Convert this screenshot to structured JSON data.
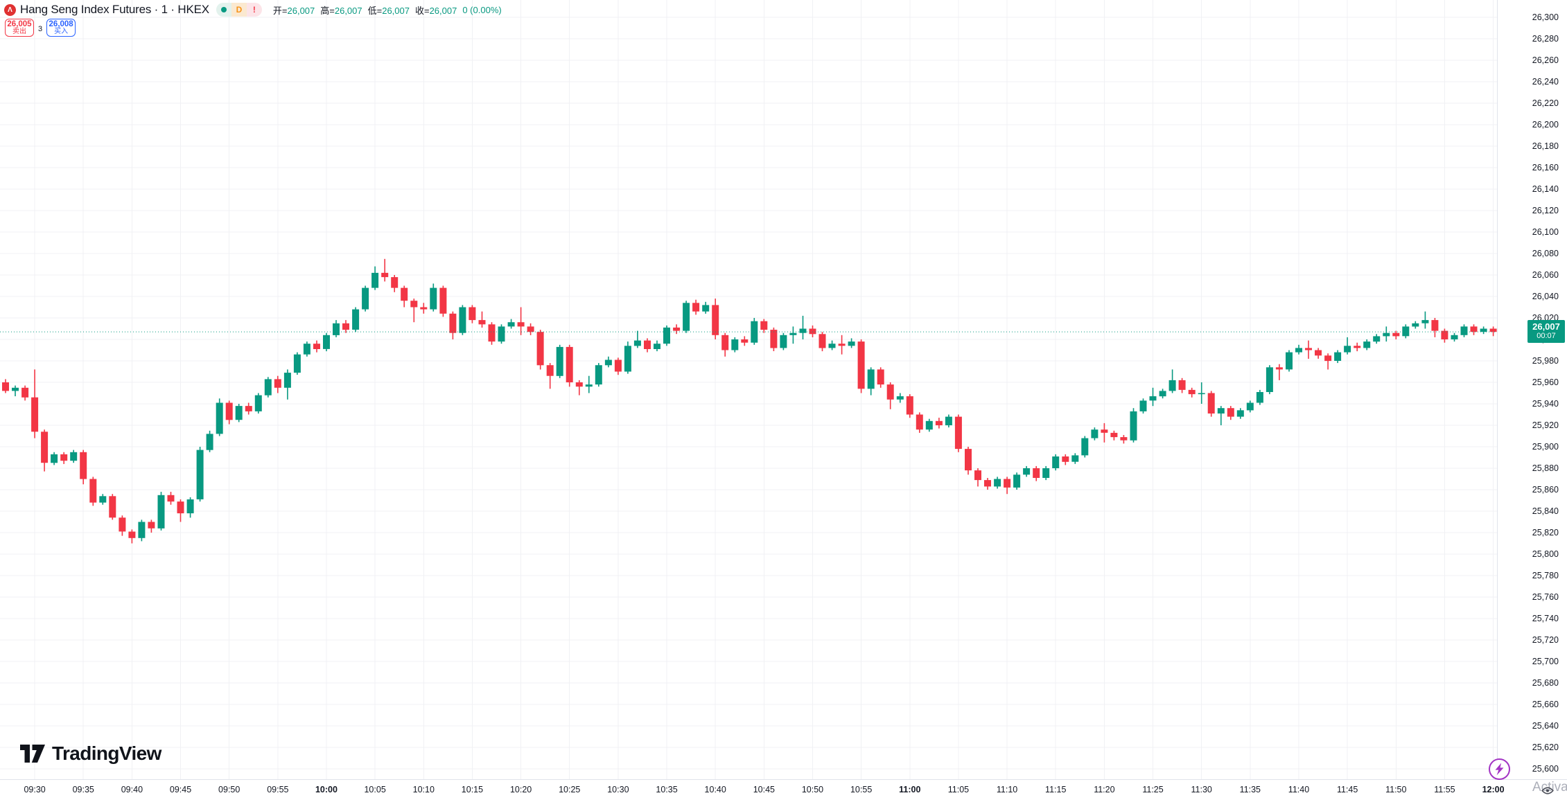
{
  "header": {
    "symbol_logo_glyph": "Λ",
    "symbol_title": "Hang Seng Index Futures · 1 · HKEX",
    "status": {
      "delayed_label": "D",
      "alert_label": "!"
    },
    "ohlc": {
      "open_label": "开=",
      "open_value": "26,007",
      "high_label": "高=",
      "high_value": "26,007",
      "low_label": "低=",
      "low_value": "26,007",
      "close_label": "收=",
      "close_value": "26,007",
      "change": "0 (0.00%)"
    }
  },
  "trade_panel": {
    "sell_price": "26,005",
    "sell_label": "卖出",
    "spread": "3",
    "buy_price": "26,008",
    "buy_label": "买入"
  },
  "price_axis": {
    "ticks": [
      "26,300",
      "26,280",
      "26,260",
      "26,240",
      "26,220",
      "26,200",
      "26,180",
      "26,160",
      "26,140",
      "26,120",
      "26,100",
      "26,080",
      "26,060",
      "26,040",
      "26,020",
      "26,000",
      "25,980",
      "25,960",
      "25,940",
      "25,920",
      "25,900",
      "25,880",
      "25,860",
      "25,840",
      "25,820",
      "25,800",
      "25,780",
      "25,760",
      "25,740",
      "25,720",
      "25,700",
      "25,680",
      "25,660",
      "25,640",
      "25,620",
      "25,600"
    ],
    "last_price_label": "26,007",
    "bar_countdown": "00:07"
  },
  "time_axis": {
    "ticks": [
      "09:30",
      "09:35",
      "09:40",
      "09:45",
      "09:50",
      "09:55",
      "10:00",
      "10:05",
      "10:10",
      "10:15",
      "10:20",
      "10:25",
      "10:30",
      "10:35",
      "10:40",
      "10:45",
      "10:50",
      "10:55",
      "11:00",
      "11:05",
      "11:10",
      "11:15",
      "11:20",
      "11:25",
      "11:30",
      "11:35",
      "11:40",
      "11:45",
      "11:50",
      "11:55",
      "12:00"
    ]
  },
  "watermark": {
    "logo_text": "TradingView"
  },
  "misc": {
    "activate_text": "Activa"
  },
  "colors": {
    "up": "#089981",
    "down": "#F23645",
    "grid": "#F0F1F4",
    "axis_border": "#E0E3EB",
    "last_price_bg": "#089981",
    "sell": "#F23645",
    "buy": "#2962FF",
    "lightning": "#A234C4"
  },
  "chart_data": {
    "type": "candlestick",
    "title": "Hang Seng Index Futures",
    "exchange": "HKEX",
    "interval": "1",
    "session_open": 26007,
    "session_high": 26007,
    "session_low": 26007,
    "session_close": 26007,
    "change": 0,
    "change_pct": 0.0,
    "last_price": 26007,
    "price_axis_range": [
      25600,
      26300
    ],
    "price_tick_step": 20,
    "first_candle_time": "09:27",
    "interval_minutes": 1,
    "x_ticks_every_minutes": 5,
    "grid": true,
    "candles_ohlc": [
      [
        25960,
        25963,
        25950,
        25952
      ],
      [
        25952,
        25957,
        25947,
        25955
      ],
      [
        25955,
        25957,
        25943,
        25946
      ],
      [
        25946,
        25972,
        25908,
        25914
      ],
      [
        25914,
        25916,
        25877,
        25885
      ],
      [
        25885,
        25895,
        25883,
        25893
      ],
      [
        25893,
        25895,
        25884,
        25887
      ],
      [
        25887,
        25897,
        25885,
        25895
      ],
      [
        25895,
        25897,
        25865,
        25870
      ],
      [
        25870,
        25872,
        25845,
        25848
      ],
      [
        25848,
        25856,
        25846,
        25854
      ],
      [
        25854,
        25856,
        25832,
        25834
      ],
      [
        25834,
        25836,
        25817,
        25821
      ],
      [
        25821,
        25823,
        25810,
        25815
      ],
      [
        25815,
        25832,
        25812,
        25830
      ],
      [
        25830,
        25832,
        25820,
        25824
      ],
      [
        25824,
        25858,
        25822,
        25855
      ],
      [
        25855,
        25858,
        25846,
        25849
      ],
      [
        25849,
        25851,
        25830,
        25838
      ],
      [
        25838,
        25853,
        25834,
        25851
      ],
      [
        25851,
        25900,
        25849,
        25897
      ],
      [
        25897,
        25915,
        25895,
        25912
      ],
      [
        25912,
        25945,
        25910,
        25941
      ],
      [
        25941,
        25943,
        25921,
        25925
      ],
      [
        25925,
        25940,
        25923,
        25938
      ],
      [
        25938,
        25941,
        25930,
        25933
      ],
      [
        25933,
        25950,
        25931,
        25948
      ],
      [
        25948,
        25965,
        25946,
        25963
      ],
      [
        25963,
        25966,
        25950,
        25955
      ],
      [
        25955,
        25972,
        25944,
        25969
      ],
      [
        25969,
        25988,
        25967,
        25986
      ],
      [
        25986,
        25998,
        25984,
        25996
      ],
      [
        25996,
        25999,
        25988,
        25991
      ],
      [
        25991,
        26006,
        25989,
        26004
      ],
      [
        26004,
        26018,
        26002,
        26015
      ],
      [
        26015,
        26018,
        26006,
        26009
      ],
      [
        26009,
        26030,
        26007,
        26028
      ],
      [
        26028,
        26050,
        26026,
        26048
      ],
      [
        26048,
        26068,
        26046,
        26062
      ],
      [
        26062,
        26075,
        26054,
        26058
      ],
      [
        26058,
        26060,
        26044,
        26048
      ],
      [
        26048,
        26050,
        26030,
        26036
      ],
      [
        26036,
        26038,
        26016,
        26030
      ],
      [
        26030,
        26034,
        26024,
        26028
      ],
      [
        26028,
        26052,
        26026,
        26048
      ],
      [
        26048,
        26050,
        26021,
        26024
      ],
      [
        26024,
        26026,
        26000,
        26006
      ],
      [
        26006,
        26032,
        26004,
        26030
      ],
      [
        26030,
        26032,
        26015,
        26018
      ],
      [
        26018,
        26026,
        26011,
        26014
      ],
      [
        26014,
        26016,
        25995,
        25998
      ],
      [
        25998,
        26014,
        25996,
        26012
      ],
      [
        26012,
        26019,
        26010,
        26016
      ],
      [
        26016,
        26030,
        26004,
        26012
      ],
      [
        26012,
        26015,
        26004,
        26007
      ],
      [
        26007,
        26009,
        25972,
        25976
      ],
      [
        25976,
        25978,
        25954,
        25966
      ],
      [
        25966,
        25995,
        25964,
        25993
      ],
      [
        25993,
        25995,
        25956,
        25960
      ],
      [
        25960,
        25962,
        25948,
        25956
      ],
      [
        25956,
        25966,
        25950,
        25958
      ],
      [
        25958,
        25978,
        25956,
        25976
      ],
      [
        25976,
        25984,
        25974,
        25981
      ],
      [
        25981,
        25983,
        25967,
        25970
      ],
      [
        25970,
        25998,
        25968,
        25994
      ],
      [
        25994,
        26008,
        25992,
        25999
      ],
      [
        25999,
        26001,
        25988,
        25991
      ],
      [
        25991,
        25999,
        25989,
        25996
      ],
      [
        25996,
        26013,
        25994,
        26011
      ],
      [
        26011,
        26014,
        26005,
        26008
      ],
      [
        26008,
        26036,
        26006,
        26034
      ],
      [
        26034,
        26037,
        26023,
        26026
      ],
      [
        26026,
        26035,
        26024,
        26032
      ],
      [
        26032,
        26038,
        26000,
        26004
      ],
      [
        26004,
        26006,
        25984,
        25990
      ],
      [
        25990,
        26002,
        25988,
        26000
      ],
      [
        26000,
        26003,
        25994,
        25997
      ],
      [
        25997,
        26020,
        25995,
        26017
      ],
      [
        26017,
        26019,
        26006,
        26009
      ],
      [
        26009,
        26011,
        25989,
        25992
      ],
      [
        25992,
        26006,
        25990,
        26004
      ],
      [
        26004,
        26012,
        25996,
        26006
      ],
      [
        26006,
        26022,
        26000,
        26010
      ],
      [
        26010,
        26013,
        26002,
        26005
      ],
      [
        26005,
        26007,
        25989,
        25992
      ],
      [
        25992,
        25999,
        25990,
        25996
      ],
      [
        25996,
        26004,
        25986,
        25994
      ],
      [
        25994,
        26001,
        25992,
        25998
      ],
      [
        25998,
        26000,
        25950,
        25954
      ],
      [
        25954,
        25974,
        25948,
        25972
      ],
      [
        25972,
        25974,
        25955,
        25958
      ],
      [
        25958,
        25960,
        25935,
        25944
      ],
      [
        25944,
        25950,
        25941,
        25947
      ],
      [
        25947,
        25949,
        25927,
        25930
      ],
      [
        25930,
        25932,
        25913,
        25916
      ],
      [
        25916,
        25926,
        25914,
        25924
      ],
      [
        25924,
        25927,
        25917,
        25920
      ],
      [
        25920,
        25930,
        25918,
        25928
      ],
      [
        25928,
        25930,
        25895,
        25898
      ],
      [
        25898,
        25900,
        25874,
        25878
      ],
      [
        25878,
        25880,
        25863,
        25869
      ],
      [
        25869,
        25871,
        25860,
        25863
      ],
      [
        25863,
        25872,
        25861,
        25870
      ],
      [
        25870,
        25872,
        25856,
        25862
      ],
      [
        25862,
        25876,
        25860,
        25874
      ],
      [
        25874,
        25882,
        25872,
        25880
      ],
      [
        25880,
        25882,
        25868,
        25871
      ],
      [
        25871,
        25882,
        25869,
        25880
      ],
      [
        25880,
        25893,
        25878,
        25891
      ],
      [
        25891,
        25893,
        25883,
        25886
      ],
      [
        25886,
        25894,
        25884,
        25892
      ],
      [
        25892,
        25910,
        25890,
        25908
      ],
      [
        25908,
        25918,
        25906,
        25916
      ],
      [
        25916,
        25922,
        25904,
        25913
      ],
      [
        25913,
        25915,
        25906,
        25909
      ],
      [
        25909,
        25911,
        25903,
        25906
      ],
      [
        25906,
        25936,
        25904,
        25933
      ],
      [
        25933,
        25945,
        25931,
        25943
      ],
      [
        25943,
        25955,
        25938,
        25947
      ],
      [
        25947,
        25954,
        25945,
        25952
      ],
      [
        25952,
        25972,
        25950,
        25962
      ],
      [
        25962,
        25964,
        25950,
        25953
      ],
      [
        25953,
        25955,
        25946,
        25949
      ],
      [
        25949,
        25960,
        25940,
        25950
      ],
      [
        25950,
        25952,
        25928,
        25931
      ],
      [
        25931,
        25938,
        25920,
        25936
      ],
      [
        25936,
        25938,
        25925,
        25928
      ],
      [
        25928,
        25936,
        25926,
        25934
      ],
      [
        25934,
        25943,
        25932,
        25941
      ],
      [
        25941,
        25953,
        25939,
        25951
      ],
      [
        25951,
        25976,
        25949,
        25974
      ],
      [
        25974,
        25977,
        25962,
        25972
      ],
      [
        25972,
        25990,
        25970,
        25988
      ],
      [
        25988,
        25995,
        25986,
        25992
      ],
      [
        25992,
        25999,
        25982,
        25990
      ],
      [
        25990,
        25992,
        25982,
        25985
      ],
      [
        25985,
        25987,
        25972,
        25980
      ],
      [
        25980,
        25990,
        25978,
        25988
      ],
      [
        25988,
        26002,
        25986,
        25994
      ],
      [
        25994,
        25997,
        25989,
        25992
      ],
      [
        25992,
        26000,
        25990,
        25998
      ],
      [
        25998,
        26005,
        25996,
        26003
      ],
      [
        26003,
        26012,
        25998,
        26006
      ],
      [
        26006,
        26008,
        26000,
        26003
      ],
      [
        26003,
        26014,
        26001,
        26012
      ],
      [
        26012,
        26017,
        26010,
        26015
      ],
      [
        26015,
        26026,
        26010,
        26018
      ],
      [
        26018,
        26020,
        26002,
        26008
      ],
      [
        26008,
        26010,
        25997,
        26000
      ],
      [
        26000,
        26006,
        25998,
        26004
      ],
      [
        26004,
        26014,
        26002,
        26012
      ],
      [
        26012,
        26014,
        26004,
        26007
      ],
      [
        26007,
        26012,
        26005,
        26010
      ],
      [
        26010,
        26012,
        26003,
        26007
      ]
    ]
  }
}
